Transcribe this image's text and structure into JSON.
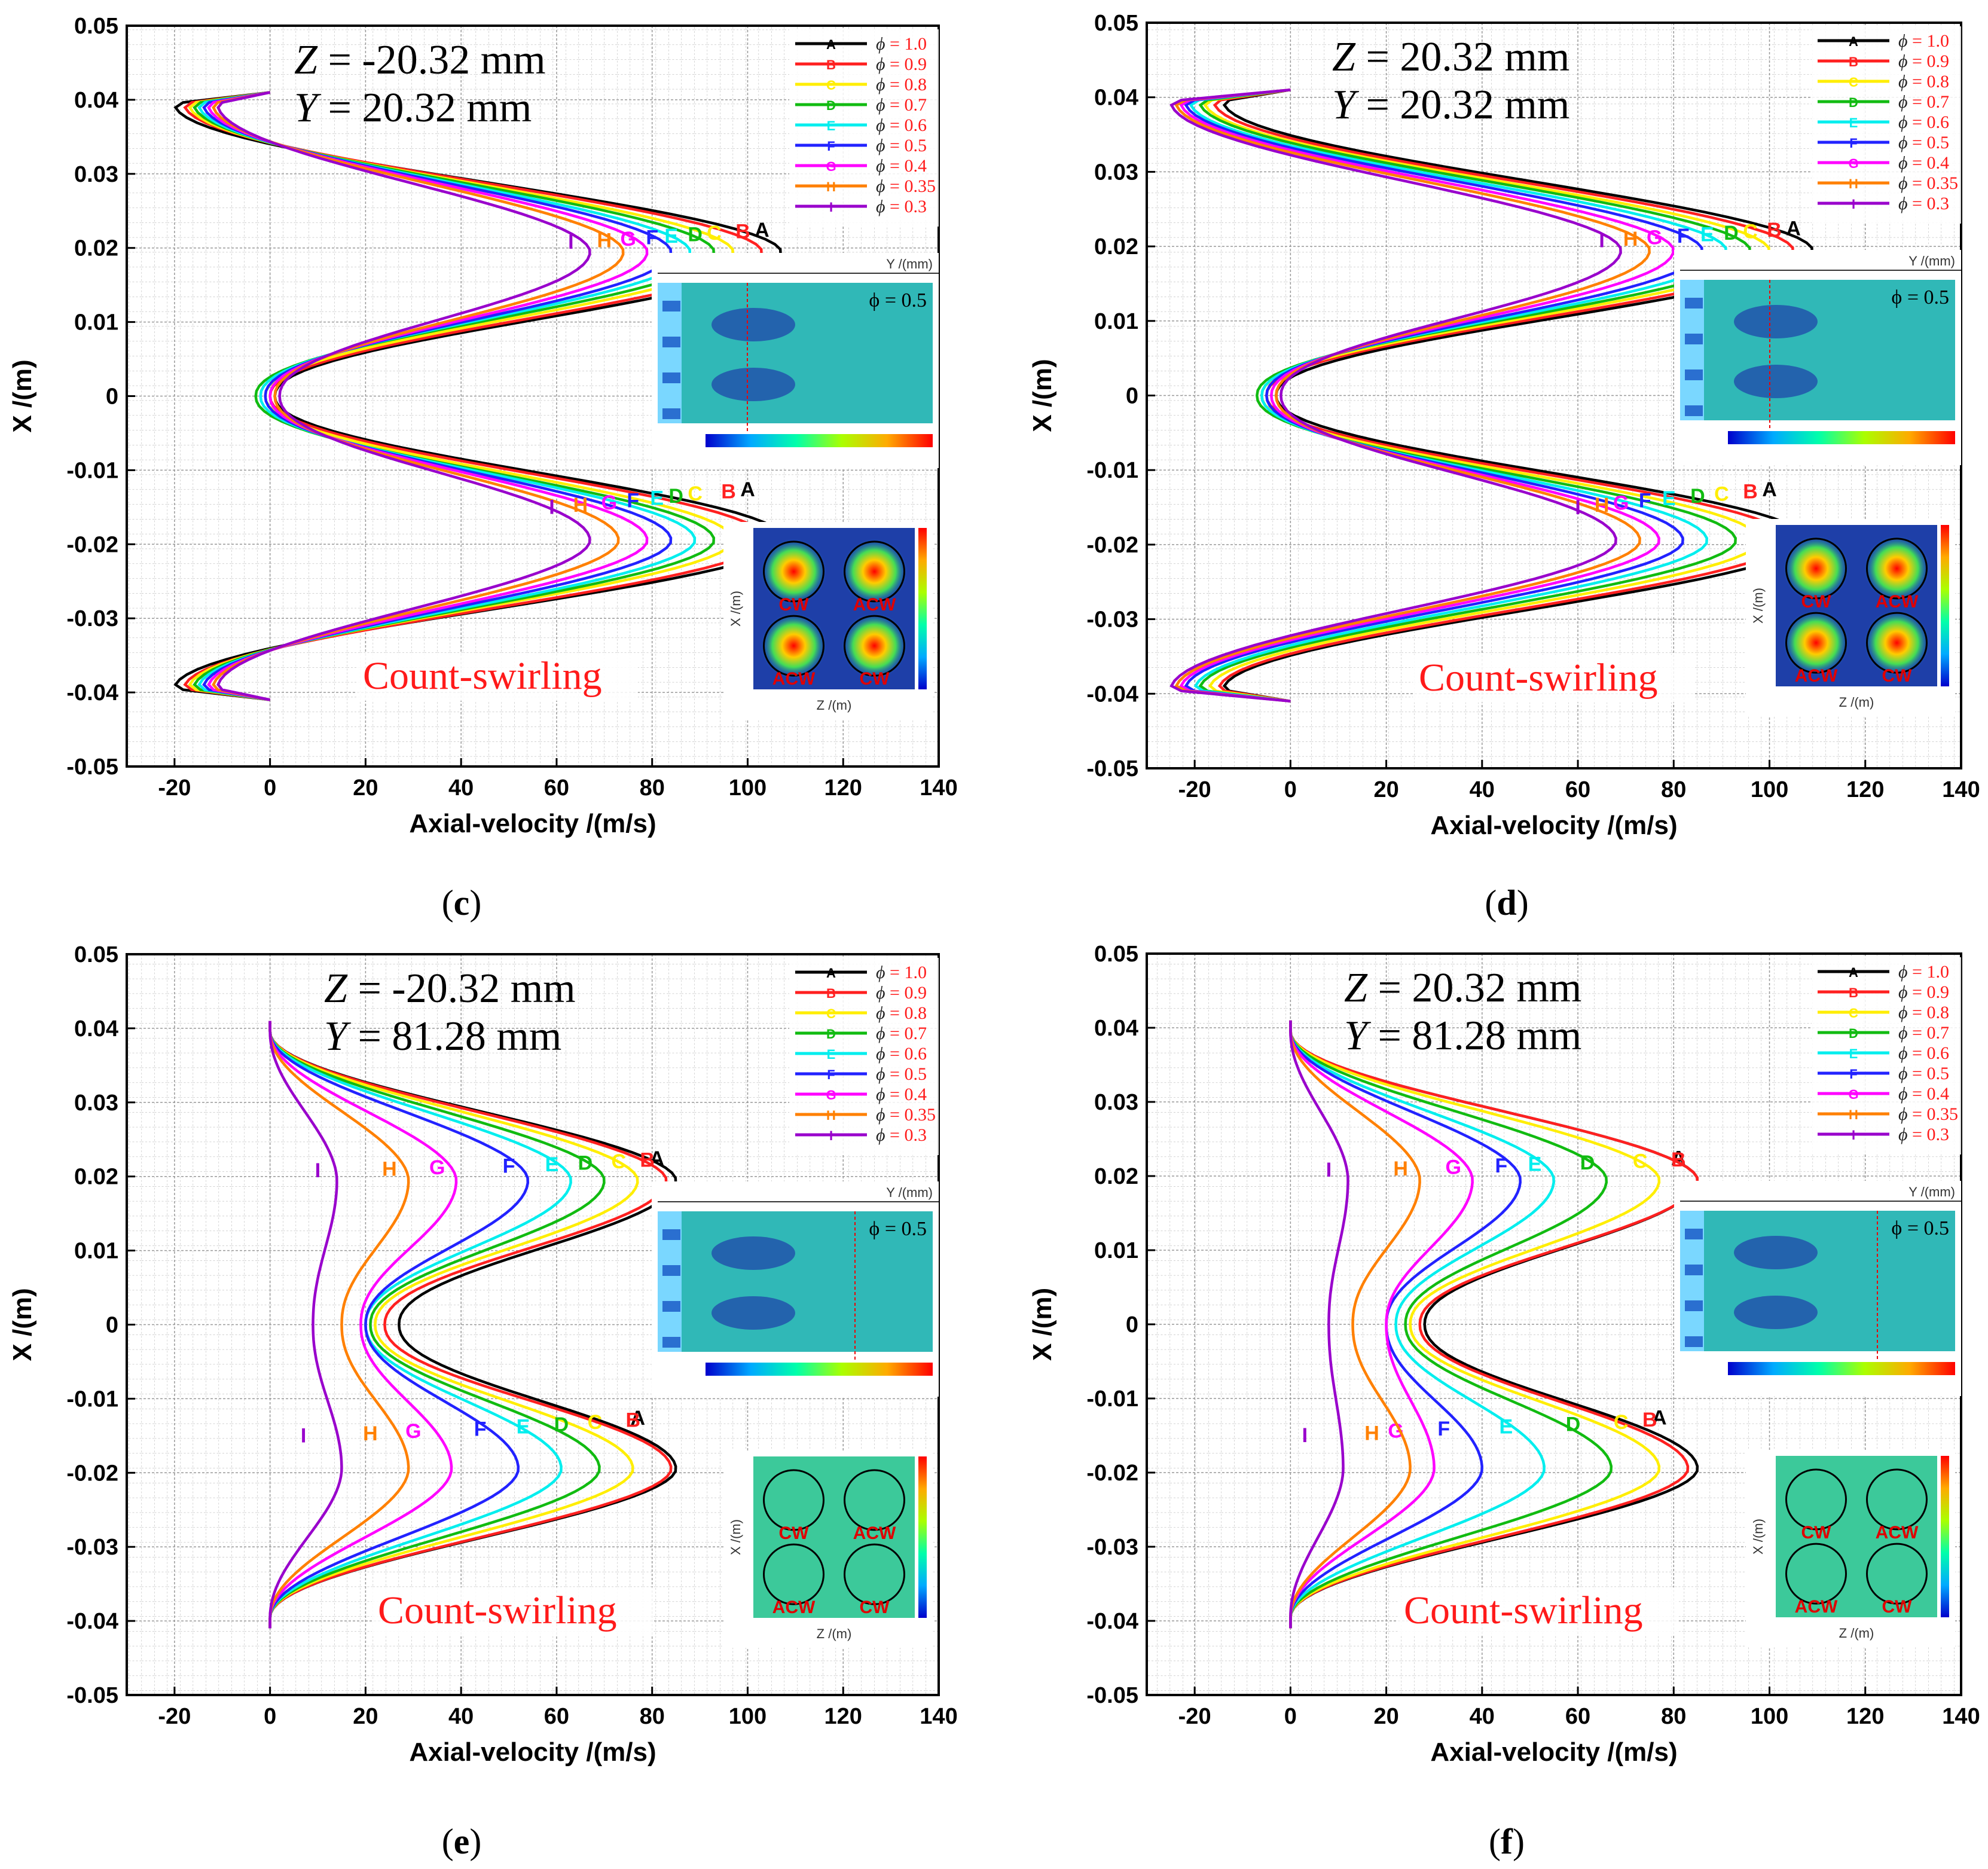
{
  "figure": {
    "common": {
      "x_axis_label": "Axial-velocity /(m/s)",
      "y_axis_label": "X /(m)",
      "x_ticks": [
        "-20",
        "0",
        "20",
        "40",
        "60",
        "80",
        "100",
        "120",
        "140"
      ],
      "y_ticks": [
        "0.05",
        "0.04",
        "0.03",
        "0.02",
        "0.01",
        "0",
        "-0.01",
        "-0.02",
        "-0.03",
        "-0.04",
        "-0.05"
      ],
      "swirl_note": "Count-swirling",
      "legend_prefix": "ϕ",
      "inset_phi_label": "ϕ = 0.5",
      "inset_top_axis": "Y /(mm)",
      "inset_bottom_xaxis": "Z /(m)",
      "inset_bottom_yaxis": "X /(m)",
      "vortex_labels": [
        "CW",
        "ACW",
        "ACW",
        "CW"
      ]
    },
    "series_style": [
      {
        "name": "ϕ = 1.0",
        "letter": "A",
        "color": "#000000"
      },
      {
        "name": "ϕ = 0.9",
        "letter": "B",
        "color": "#ff2020"
      },
      {
        "name": "ϕ = 0.8",
        "letter": "C",
        "color": "#ffee00"
      },
      {
        "name": "ϕ = 0.7",
        "letter": "D",
        "color": "#11bb11"
      },
      {
        "name": "ϕ = 0.6",
        "letter": "E",
        "color": "#00eeee"
      },
      {
        "name": "ϕ = 0.5",
        "letter": "F",
        "color": "#2222ff"
      },
      {
        "name": "ϕ = 0.4",
        "letter": "G",
        "color": "#ff00ff"
      },
      {
        "name": "ϕ = 0.35",
        "letter": "H",
        "color": "#ff8000"
      },
      {
        "name": "ϕ = 0.3",
        "letter": "I",
        "color": "#9900cc"
      }
    ],
    "panels": [
      {
        "id": "c",
        "label": "c",
        "z_text": "Z",
        "z_val": " = -20.32 mm",
        "y_text": "Y",
        "y_val": " = 20.32 mm"
      },
      {
        "id": "d",
        "label": "d",
        "z_text": "Z",
        "z_val": " = 20.32 mm",
        "y_text": "Y",
        "y_val": " = 20.32 mm"
      },
      {
        "id": "e",
        "label": "e",
        "z_text": "Z",
        "z_val": " = -20.32 mm",
        "y_text": "Y",
        "y_val": " = 81.28 mm"
      },
      {
        "id": "f",
        "label": "f",
        "z_text": "Z",
        "z_val": " = 20.32 mm",
        "y_text": "Y",
        "y_val": " = 81.28 mm"
      }
    ]
  },
  "chart_data": [
    {
      "type": "line",
      "panel": "c",
      "title": "Z = -20.32 mm, Y = 20.32 mm",
      "xlabel": "Axial-velocity /(m/s)",
      "ylabel": "X /(m)",
      "xlim": [
        -30,
        140
      ],
      "ylim": [
        -0.05,
        0.05
      ],
      "grid": true,
      "legend": "top-right",
      "profile": "double-peak",
      "series": [
        {
          "name": "ϕ = 1.0",
          "peak_upper": 107,
          "peak_lower": 108,
          "center_min": 1,
          "edge_top": -20,
          "edge_bottom": -20
        },
        {
          "name": "ϕ = 0.9",
          "peak_upper": 103,
          "peak_lower": 104,
          "center_min": 0,
          "edge_top": -18,
          "edge_bottom": -18
        },
        {
          "name": "ϕ = 0.8",
          "peak_upper": 97,
          "peak_lower": 97,
          "center_min": -1,
          "edge_top": -17,
          "edge_bottom": -17
        },
        {
          "name": "ϕ = 0.7",
          "peak_upper": 93,
          "peak_lower": 93,
          "center_min": -3,
          "edge_top": -16,
          "edge_bottom": -16
        },
        {
          "name": "ϕ = 0.6",
          "peak_upper": 88,
          "peak_lower": 89,
          "center_min": -2,
          "edge_top": -15,
          "edge_bottom": -15
        },
        {
          "name": "ϕ = 0.5",
          "peak_upper": 84,
          "peak_lower": 84,
          "center_min": -1,
          "edge_top": -14,
          "edge_bottom": -14
        },
        {
          "name": "ϕ = 0.4",
          "peak_upper": 79,
          "peak_lower": 79,
          "center_min": 0,
          "edge_top": -13,
          "edge_bottom": -13
        },
        {
          "name": "ϕ = 0.35",
          "peak_upper": 74,
          "peak_lower": 73,
          "center_min": 1,
          "edge_top": -12,
          "edge_bottom": -12
        },
        {
          "name": "ϕ = 0.3",
          "peak_upper": 67,
          "peak_lower": 67,
          "center_min": 2,
          "edge_top": -11,
          "edge_bottom": -11
        }
      ]
    },
    {
      "type": "line",
      "panel": "d",
      "title": "Z = 20.32 mm, Y = 20.32 mm",
      "xlabel": "Axial-velocity /(m/s)",
      "ylabel": "X /(m)",
      "xlim": [
        -30,
        140
      ],
      "ylim": [
        -0.05,
        0.05
      ],
      "grid": true,
      "legend": "top-right",
      "profile": "double-peak",
      "series": [
        {
          "name": "ϕ = 1.0",
          "peak_upper": 109,
          "peak_lower": 108,
          "center_min": -3,
          "edge_top": -14,
          "edge_bottom": -14
        },
        {
          "name": "ϕ = 0.9",
          "peak_upper": 105,
          "peak_lower": 104,
          "center_min": -5,
          "edge_top": -16,
          "edge_bottom": -15
        },
        {
          "name": "ϕ = 0.8",
          "peak_upper": 100,
          "peak_lower": 98,
          "center_min": -6,
          "edge_top": -18,
          "edge_bottom": -17
        },
        {
          "name": "ϕ = 0.7",
          "peak_upper": 96,
          "peak_lower": 93,
          "center_min": -7,
          "edge_top": -19,
          "edge_bottom": -19
        },
        {
          "name": "ϕ = 0.6",
          "peak_upper": 91,
          "peak_lower": 87,
          "center_min": -6,
          "edge_top": -21,
          "edge_bottom": -20
        },
        {
          "name": "ϕ = 0.5",
          "peak_upper": 86,
          "peak_lower": 82,
          "center_min": -5,
          "edge_top": -22,
          "edge_bottom": -22
        },
        {
          "name": "ϕ = 0.4",
          "peak_upper": 80,
          "peak_lower": 77,
          "center_min": -4,
          "edge_top": -23,
          "edge_bottom": -23
        },
        {
          "name": "ϕ = 0.35",
          "peak_upper": 75,
          "peak_lower": 73,
          "center_min": -3,
          "edge_top": -24,
          "edge_bottom": -24
        },
        {
          "name": "ϕ = 0.3",
          "peak_upper": 69,
          "peak_lower": 68,
          "center_min": -2,
          "edge_top": -25,
          "edge_bottom": -25
        }
      ]
    },
    {
      "type": "line",
      "panel": "e",
      "title": "Z = -20.32 mm, Y = 81.28 mm",
      "xlabel": "Axial-velocity /(m/s)",
      "ylabel": "X /(m)",
      "xlim": [
        -30,
        140
      ],
      "ylim": [
        -0.05,
        0.05
      ],
      "grid": true,
      "legend": "top-right",
      "profile": "double-peak",
      "series": [
        {
          "name": "ϕ = 1.0",
          "peak_upper": 85,
          "peak_lower": 85,
          "center_min": 27,
          "edge_top": 0,
          "edge_bottom": 0
        },
        {
          "name": "ϕ = 0.9",
          "peak_upper": 83,
          "peak_lower": 84,
          "center_min": 24,
          "edge_top": 0,
          "edge_bottom": 0
        },
        {
          "name": "ϕ = 0.8",
          "peak_upper": 77,
          "peak_lower": 76,
          "center_min": 22,
          "edge_top": 0,
          "edge_bottom": 0
        },
        {
          "name": "ϕ = 0.7",
          "peak_upper": 70,
          "peak_lower": 69,
          "center_min": 21,
          "edge_top": 0,
          "edge_bottom": 0
        },
        {
          "name": "ϕ = 0.6",
          "peak_upper": 63,
          "peak_lower": 61,
          "center_min": 20,
          "edge_top": 0,
          "edge_bottom": 0
        },
        {
          "name": "ϕ = 0.5",
          "peak_upper": 54,
          "peak_lower": 52,
          "center_min": 20,
          "edge_top": 0,
          "edge_bottom": 0
        },
        {
          "name": "ϕ = 0.4",
          "peak_upper": 39,
          "peak_lower": 38,
          "center_min": 19,
          "edge_top": 0,
          "edge_bottom": 0
        },
        {
          "name": "ϕ = 0.35",
          "peak_upper": 29,
          "peak_lower": 29,
          "center_min": 15,
          "edge_top": 0,
          "edge_bottom": 0
        },
        {
          "name": "ϕ = 0.3",
          "peak_upper": 14,
          "peak_lower": 15,
          "center_min": 9,
          "edge_top": 0,
          "edge_bottom": 0
        }
      ]
    },
    {
      "type": "line",
      "panel": "f",
      "title": "Z = 20.32 mm, Y = 81.28 mm",
      "xlabel": "Axial-velocity /(m/s)",
      "ylabel": "X /(m)",
      "xlim": [
        -30,
        140
      ],
      "ylim": [
        -0.05,
        0.05
      ],
      "grid": true,
      "legend": "top-right",
      "profile": "double-peak",
      "series": [
        {
          "name": "ϕ = 1.0",
          "peak_upper": 85,
          "peak_lower": 85,
          "center_min": 28,
          "edge_top": 0,
          "edge_bottom": 0
        },
        {
          "name": "ϕ = 0.9",
          "peak_upper": 85,
          "peak_lower": 83,
          "center_min": 27,
          "edge_top": 0,
          "edge_bottom": 0
        },
        {
          "name": "ϕ = 0.8",
          "peak_upper": 77,
          "peak_lower": 77,
          "center_min": 25,
          "edge_top": 0,
          "edge_bottom": 0
        },
        {
          "name": "ϕ = 0.7",
          "peak_upper": 66,
          "peak_lower": 67,
          "center_min": 24,
          "edge_top": 0,
          "edge_bottom": 0
        },
        {
          "name": "ϕ = 0.6",
          "peak_upper": 55,
          "peak_lower": 53,
          "center_min": 22,
          "edge_top": 0,
          "edge_bottom": 0
        },
        {
          "name": "ϕ = 0.5",
          "peak_upper": 48,
          "peak_lower": 40,
          "center_min": 20,
          "edge_top": 0,
          "edge_bottom": 0
        },
        {
          "name": "ϕ = 0.4",
          "peak_upper": 38,
          "peak_lower": 30,
          "center_min": 20,
          "edge_top": 0,
          "edge_bottom": 0
        },
        {
          "name": "ϕ = 0.35",
          "peak_upper": 27,
          "peak_lower": 25,
          "center_min": 13,
          "edge_top": 0,
          "edge_bottom": 0
        },
        {
          "name": "ϕ = 0.3",
          "peak_upper": 12,
          "peak_lower": 11,
          "center_min": 8,
          "edge_top": 0,
          "edge_bottom": 0
        }
      ]
    }
  ]
}
